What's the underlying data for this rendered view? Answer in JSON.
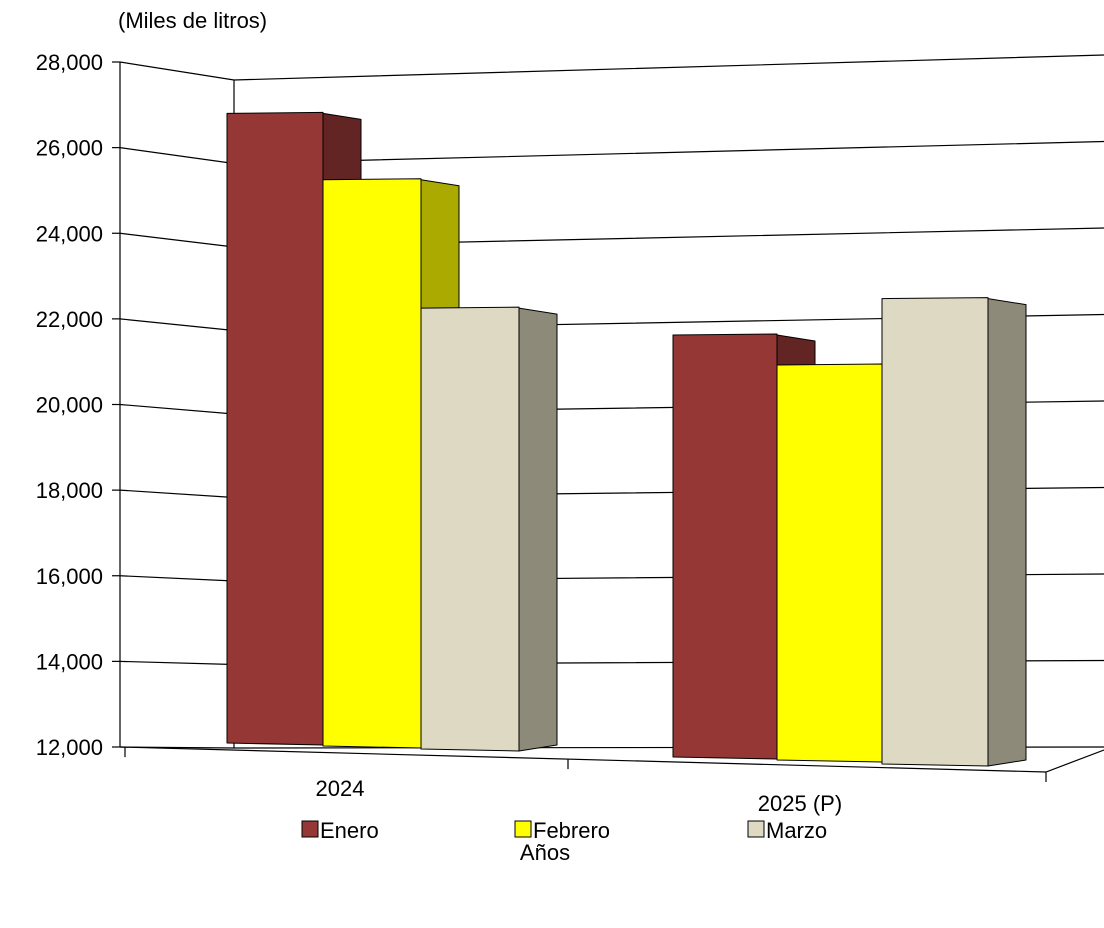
{
  "chart_data": {
    "type": "bar",
    "unit_label": "(Miles de litros)",
    "xlabel": "Años",
    "ylabel": "",
    "categories": [
      "2024",
      "2025 (P)"
    ],
    "series": [
      {
        "name": "Enero",
        "values": [
          26800,
          21950
        ],
        "color": "#953735",
        "side_color": "#632523"
      },
      {
        "name": "Febrero",
        "values": [
          25250,
          21250
        ],
        "color": "#FFFF00",
        "side_color": "#AAAA00"
      },
      {
        "name": "Marzo",
        "values": [
          22250,
          22800
        ],
        "color": "#DDD9C3",
        "side_color": "#8D8A7A"
      }
    ],
    "ylim": [
      12000,
      28000
    ],
    "yticks": [
      "12,000",
      "14,000",
      "16,000",
      "18,000",
      "20,000",
      "22,000",
      "24,000",
      "26,000",
      "28,000"
    ],
    "grid": true,
    "legend_position": "bottom"
  }
}
